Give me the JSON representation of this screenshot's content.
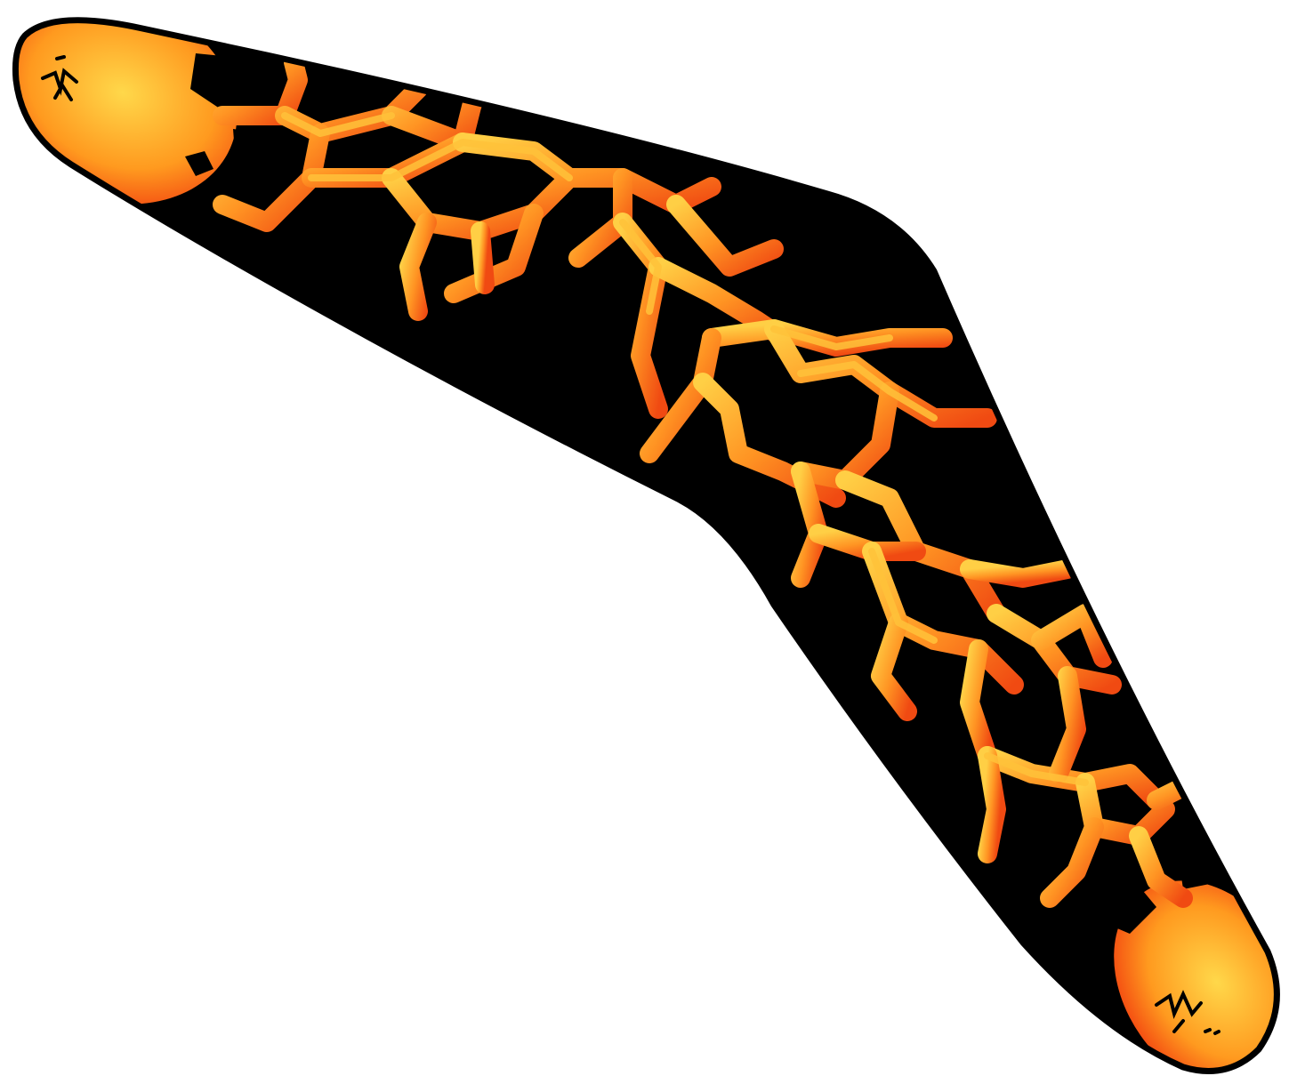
{
  "illustration": {
    "subject": "boomerang-icon",
    "colors": {
      "outline": "#000000",
      "body": "#000000",
      "lava_hot": "#ffd84a",
      "lava_mid": "#ff9a1f",
      "lava_edge": "#ef2a0c",
      "background": "#ffffff"
    }
  }
}
